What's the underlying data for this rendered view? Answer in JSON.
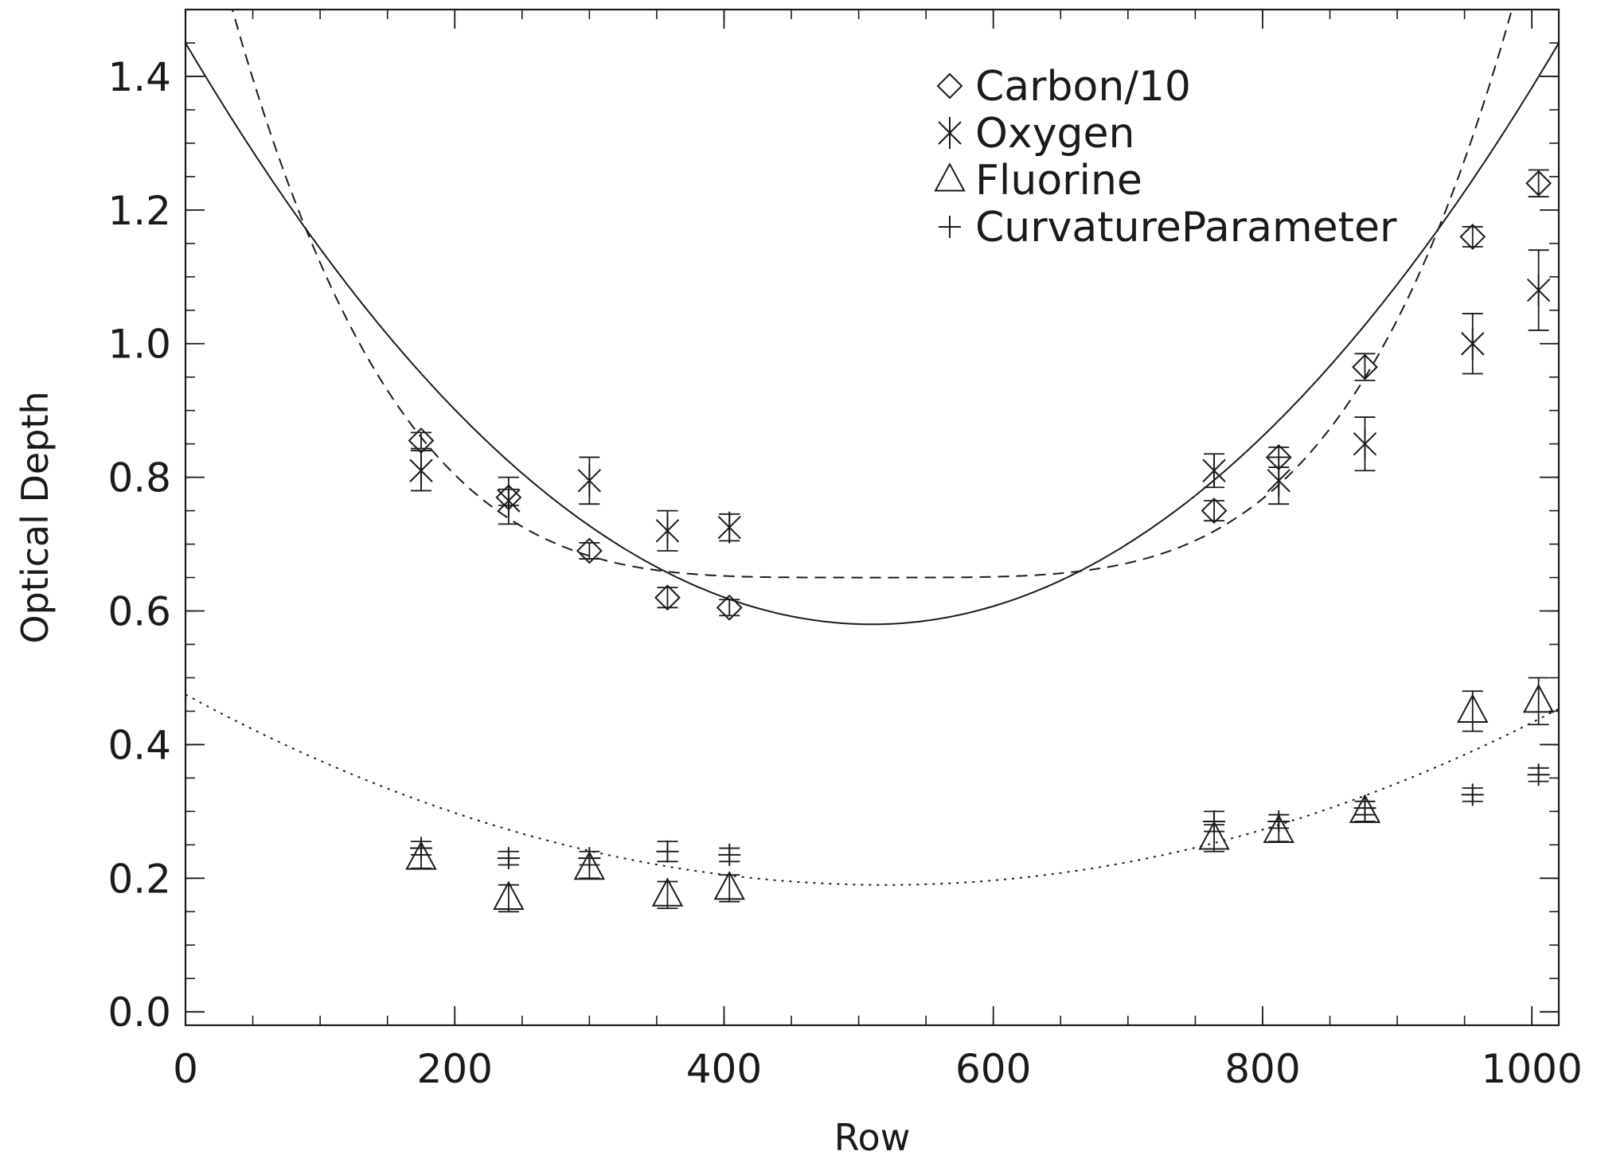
{
  "chart_data": {
    "type": "scatter",
    "title": "",
    "xlabel": "Row",
    "ylabel": "Optical Depth",
    "xlim": [
      0,
      1020
    ],
    "ylim": [
      -0.02,
      1.5
    ],
    "xticks": [
      0,
      200,
      400,
      600,
      800,
      1000
    ],
    "xtick_labels": [
      "0",
      "200",
      "400",
      "600",
      "800",
      "1000"
    ],
    "xminor_step": 50,
    "yticks": [
      0.0,
      0.2,
      0.4,
      0.6,
      0.8,
      1.0,
      1.2,
      1.4
    ],
    "ytick_labels": [
      "0.0",
      "0.2",
      "0.4",
      "0.6",
      "0.8",
      "1.0",
      "1.2",
      "1.4"
    ],
    "yminor_step": 0.05,
    "grid": false,
    "legend_position": "top-right",
    "series": [
      {
        "name": "Carbon/10",
        "marker": "diamond",
        "x": [
          175,
          240,
          300,
          358,
          404,
          764,
          812,
          876,
          956,
          1005
        ],
        "y": [
          0.855,
          0.77,
          0.69,
          0.62,
          0.605,
          0.75,
          0.83,
          0.965,
          1.16,
          1.24
        ],
        "err": [
          0.012,
          0.012,
          0.012,
          0.015,
          0.012,
          0.015,
          0.015,
          0.02,
          0.015,
          0.02
        ]
      },
      {
        "name": "Oxygen",
        "marker": "asterisk",
        "x": [
          175,
          240,
          300,
          358,
          404,
          764,
          812,
          876,
          956,
          1005
        ],
        "y": [
          0.81,
          0.765,
          0.795,
          0.72,
          0.725,
          0.81,
          0.795,
          0.85,
          1.0,
          1.08
        ],
        "err": [
          0.03,
          0.035,
          0.035,
          0.03,
          0.02,
          0.025,
          0.035,
          0.04,
          0.045,
          0.06
        ]
      },
      {
        "name": "Fluorine",
        "marker": "triangle",
        "x": [
          175,
          240,
          300,
          358,
          404,
          764,
          812,
          876,
          956,
          1005
        ],
        "y": [
          0.23,
          0.17,
          0.215,
          0.175,
          0.185,
          0.26,
          0.27,
          0.3,
          0.45,
          0.465
        ],
        "err": [
          0.015,
          0.02,
          0.015,
          0.02,
          0.02,
          0.02,
          0.015,
          0.015,
          0.03,
          0.035
        ]
      },
      {
        "name": "CurvatureParameter",
        "marker": "plus",
        "x": [
          175,
          240,
          300,
          358,
          404,
          764,
          812,
          876,
          956,
          1005
        ],
        "y": [
          0.245,
          0.23,
          0.23,
          0.24,
          0.235,
          0.285,
          0.285,
          0.305,
          0.325,
          0.355
        ],
        "err": [
          0.01,
          0.01,
          0.01,
          0.015,
          0.01,
          0.015,
          0.01,
          0.01,
          0.01,
          0.01
        ]
      }
    ],
    "fit_curves": [
      {
        "style": "solid",
        "vertex_x": 510,
        "vertex_y": 0.58,
        "value_at_0": 1.45
      },
      {
        "style": "dashed",
        "center_x": 510,
        "min_y": 0.65,
        "value_at_175": 0.86,
        "power": 4
      },
      {
        "style": "dotted",
        "vertex_x": 520,
        "vertex_y": 0.19,
        "value_at_0": 0.475
      }
    ]
  }
}
